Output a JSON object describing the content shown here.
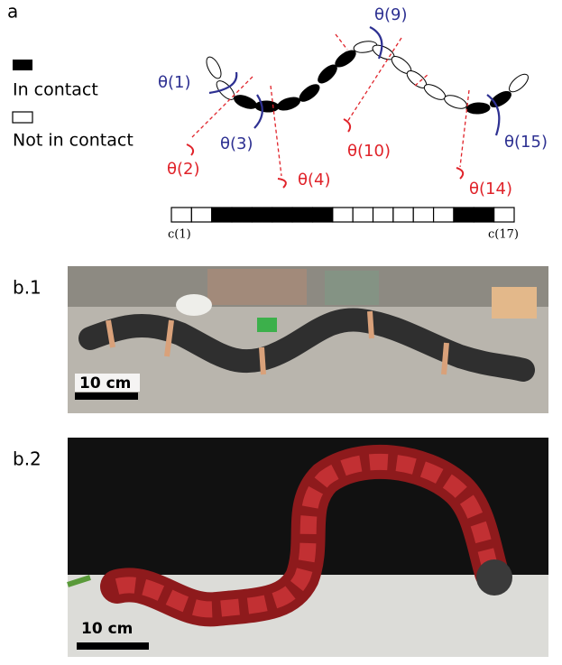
{
  "panel_a": {
    "label": "a",
    "legend": {
      "in_contact": "In contact",
      "not_in_contact": "Not in contact"
    },
    "angles": [
      "θ(1)",
      "θ(2)",
      "θ(3)",
      "θ(4)",
      "θ(9)",
      "θ(10)",
      "θ(14)",
      "θ(15)"
    ],
    "contact": [
      0,
      0,
      1,
      1,
      1,
      1,
      1,
      1,
      0,
      0,
      0,
      0,
      0,
      0,
      1,
      1,
      0
    ],
    "cell_labels": [
      "c(1)",
      "c(17)"
    ]
  },
  "panel_b1": {
    "label": "b.1",
    "scale_bar": "10 cm"
  },
  "panel_b2": {
    "label": "b.2",
    "scale_bar": "10 cm"
  }
}
